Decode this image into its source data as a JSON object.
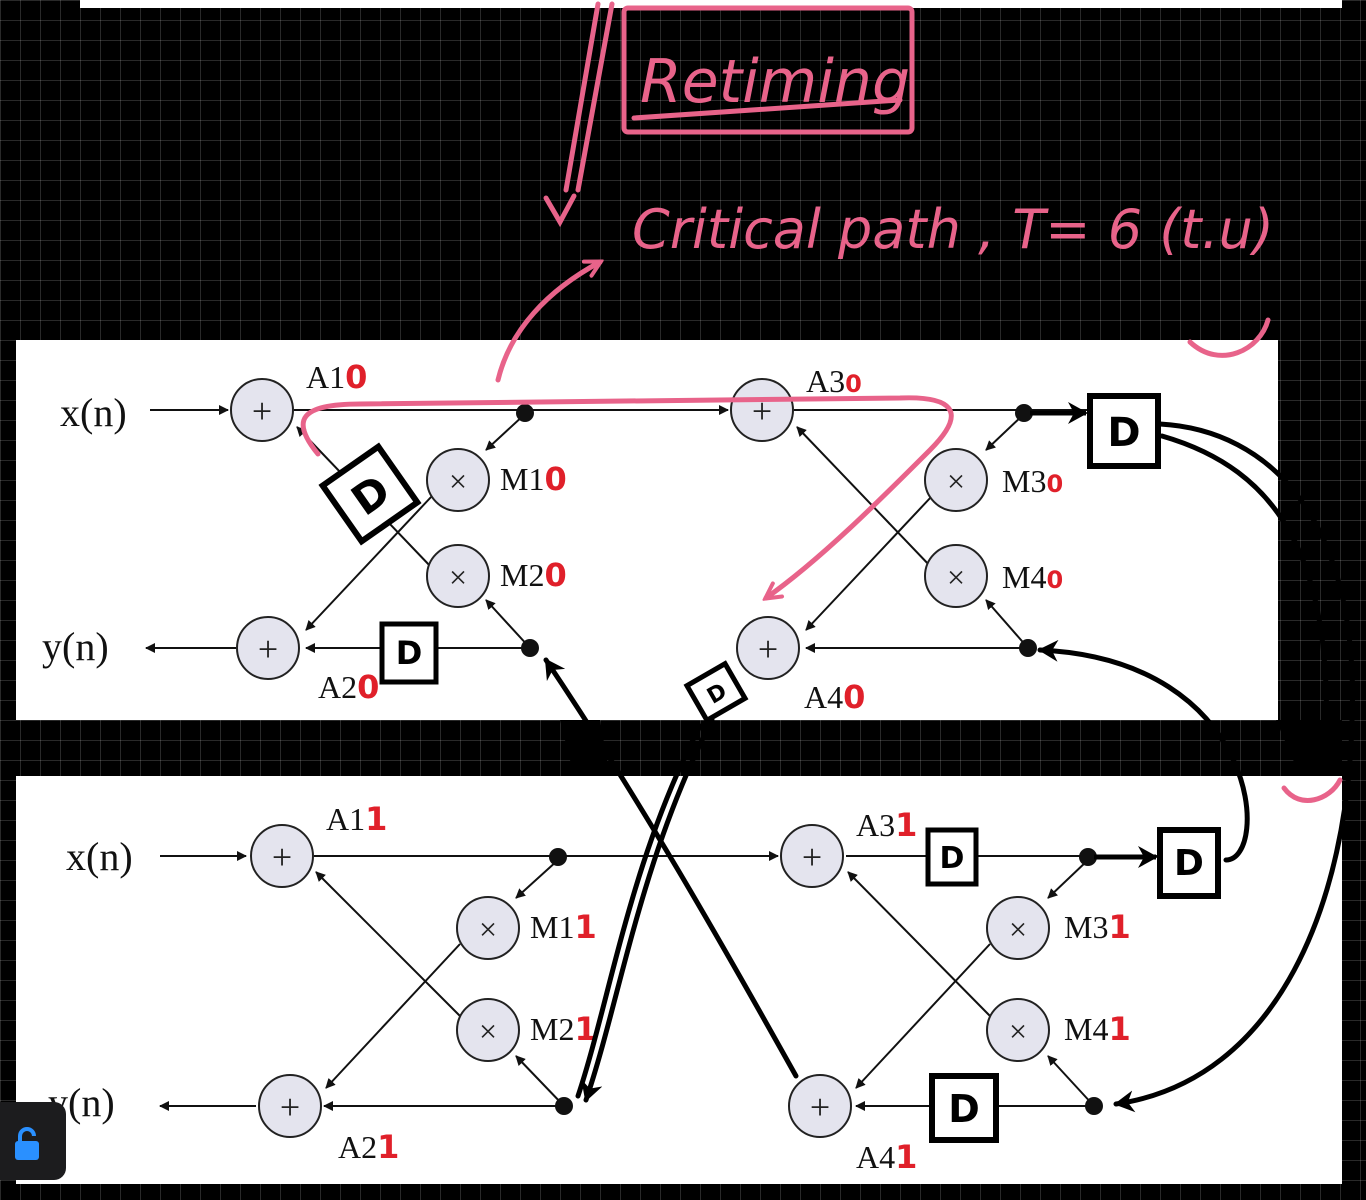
{
  "annotations": {
    "heading": "Retiming",
    "critical_path": "Critical path , T= 6 (t.u)"
  },
  "delay_label": "D",
  "diagrams": [
    {
      "input_label": "x(n)",
      "output_label": "y(n)",
      "nodes": {
        "A1": {
          "name": "A1",
          "tag": "0"
        },
        "A2": {
          "name": "A2",
          "tag": "0"
        },
        "A3": {
          "name": "A3",
          "tag": "0"
        },
        "A4": {
          "name": "A4",
          "tag": "0"
        },
        "M1": {
          "name": "M1",
          "tag": "0"
        },
        "M2": {
          "name": "M2",
          "tag": "0"
        },
        "M3": {
          "name": "M3",
          "tag": "0"
        },
        "M4": {
          "name": "M4",
          "tag": "0"
        }
      }
    },
    {
      "input_label": "x(n)",
      "output_label": "y(n)",
      "nodes": {
        "A1": {
          "name": "A1",
          "tag": "1"
        },
        "A2": {
          "name": "A2",
          "tag": "1"
        },
        "A3": {
          "name": "A3",
          "tag": "1"
        },
        "A4": {
          "name": "A4",
          "tag": "1"
        },
        "M1": {
          "name": "M1",
          "tag": "1"
        },
        "M2": {
          "name": "M2",
          "tag": "1"
        },
        "M3": {
          "name": "M3",
          "tag": "1"
        },
        "M4": {
          "name": "M4",
          "tag": "1"
        }
      }
    }
  ],
  "symbols": {
    "adder": "+",
    "multiplier": "×"
  },
  "colors": {
    "annotation": "#e8638a",
    "tag": "#e0202a",
    "node_fill": "#e4e4ee",
    "panel": "#ffffff",
    "background": "#000000"
  },
  "icons": {
    "lock": "lock-icon"
  }
}
